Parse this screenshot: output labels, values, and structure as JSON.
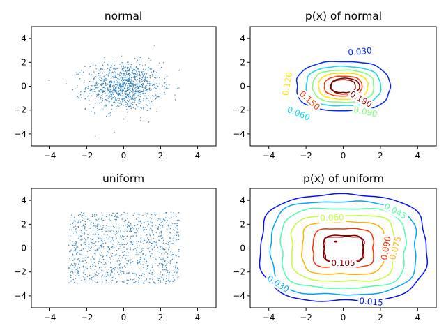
{
  "chart_data": [
    {
      "type": "scatter",
      "title": "normal",
      "xlim": [
        -5,
        5
      ],
      "ylim": [
        -5,
        5
      ],
      "xticks": [
        -4,
        -2,
        0,
        2,
        4
      ],
      "yticks": [
        -4,
        -2,
        0,
        2,
        4
      ],
      "grid": false,
      "point_color": "#1f77b4",
      "distribution": "normal",
      "n_points": 1000,
      "mean": [
        0,
        0
      ],
      "std": [
        1,
        1
      ]
    },
    {
      "type": "contour",
      "title": "p(x) of normal",
      "xlim": [
        -5,
        5
      ],
      "ylim": [
        -5,
        5
      ],
      "xticks": [
        -4,
        -2,
        0,
        2,
        4
      ],
      "yticks": [
        -4,
        -2,
        0,
        2,
        4
      ],
      "colormap": "jet",
      "levels": [
        0.03,
        0.06,
        0.09,
        0.12,
        0.15,
        0.18
      ],
      "level_colors": [
        "#00007f",
        "#0028ff",
        "#0dd9ef",
        "#7dff79",
        "#ffe500",
        "#ff3a00",
        "#7f0000"
      ],
      "labels": [
        {
          "text": "0.030",
          "x": 0.9,
          "y": 2.9,
          "rot": -5
        },
        {
          "text": "0.060",
          "x": -2.4,
          "y": -2.3,
          "rot": 22
        },
        {
          "text": "0.090",
          "x": 1.2,
          "y": -2.15,
          "rot": 12
        },
        {
          "text": "0.120",
          "x": -3.0,
          "y": 0.2,
          "rot": -80
        },
        {
          "text": "0.150",
          "x": -1.8,
          "y": -1.2,
          "rot": 42
        },
        {
          "text": "0.180",
          "x": 0.95,
          "y": -1.1,
          "rot": 30
        }
      ]
    },
    {
      "type": "scatter",
      "title": "uniform",
      "xlim": [
        -5,
        5
      ],
      "ylim": [
        -5,
        5
      ],
      "xticks": [
        -4,
        -2,
        0,
        2,
        4
      ],
      "yticks": [
        -4,
        -2,
        0,
        2,
        4
      ],
      "grid": false,
      "point_color": "#1f77b4",
      "distribution": "uniform",
      "n_points": 1000,
      "range": [
        -3,
        3
      ]
    },
    {
      "type": "contour",
      "title": "p(x) of uniform",
      "xlim": [
        -5,
        5
      ],
      "ylim": [
        -5,
        5
      ],
      "xticks": [
        -4,
        -2,
        0,
        2,
        4
      ],
      "yticks": [
        -4,
        -2,
        0,
        2,
        4
      ],
      "colormap": "jet",
      "levels": [
        0.015,
        0.03,
        0.045,
        0.06,
        0.075,
        0.09,
        0.105
      ],
      "level_colors": [
        "#00007f",
        "#0010ff",
        "#00a4ff",
        "#4dffaa",
        "#bdff39",
        "#ffb200",
        "#ff3000",
        "#7f0000"
      ],
      "labels": [
        {
          "text": "0.015",
          "x": 1.5,
          "y": -4.5,
          "rot": 5
        },
        {
          "text": "0.030",
          "x": -3.5,
          "y": -3.0,
          "rot": 32
        },
        {
          "text": "0.045",
          "x": 2.8,
          "y": 3.1,
          "rot": 28
        },
        {
          "text": "0.060",
          "x": -0.6,
          "y": 2.55,
          "rot": -3
        },
        {
          "text": "0.075",
          "x": 2.8,
          "y": 0.0,
          "rot": -75
        },
        {
          "text": "0.090",
          "x": 2.3,
          "y": 0.0,
          "rot": -80
        },
        {
          "text": "0.105",
          "x": 0.0,
          "y": -1.25,
          "rot": 0
        }
      ]
    }
  ]
}
